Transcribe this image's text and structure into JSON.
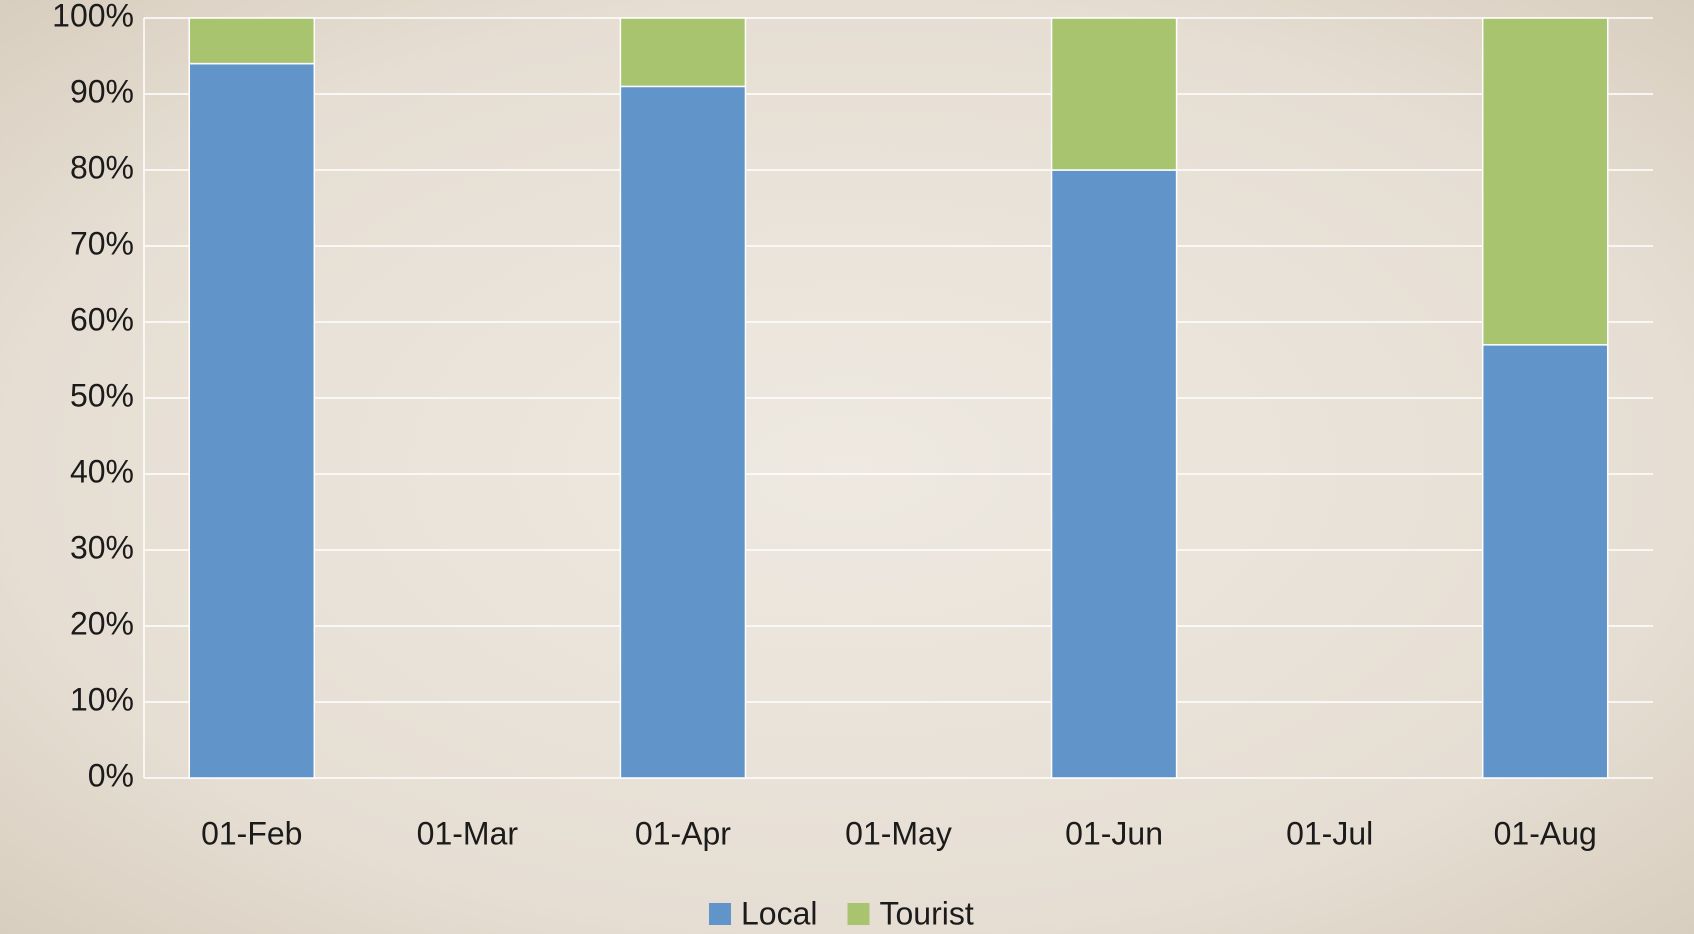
{
  "chart_data": {
    "type": "stacked_bar",
    "categories": [
      "01-Feb",
      "01-Mar",
      "01-Apr",
      "01-May",
      "01-Jun",
      "01-Jul",
      "01-Aug"
    ],
    "series": [
      {
        "name": "Local",
        "color": "#6194c9",
        "values": [
          94,
          null,
          91,
          null,
          80,
          null,
          57
        ]
      },
      {
        "name": "Tourist",
        "color": "#a8c46e",
        "values": [
          6,
          null,
          9,
          null,
          20,
          null,
          43
        ]
      }
    ],
    "ylim": [
      0,
      100
    ],
    "yticks": [
      {
        "value": 0,
        "label": "0%"
      },
      {
        "value": 10,
        "label": "10%"
      },
      {
        "value": 20,
        "label": "20%"
      },
      {
        "value": 30,
        "label": "30%"
      },
      {
        "value": 40,
        "label": "40%"
      },
      {
        "value": 50,
        "label": "50%"
      },
      {
        "value": 60,
        "label": "60%"
      },
      {
        "value": 70,
        "label": "70%"
      },
      {
        "value": 80,
        "label": "80%"
      },
      {
        "value": 90,
        "label": "90%"
      },
      {
        "value": 100,
        "label": "100%"
      }
    ],
    "grid": true,
    "legend": "bottom"
  }
}
